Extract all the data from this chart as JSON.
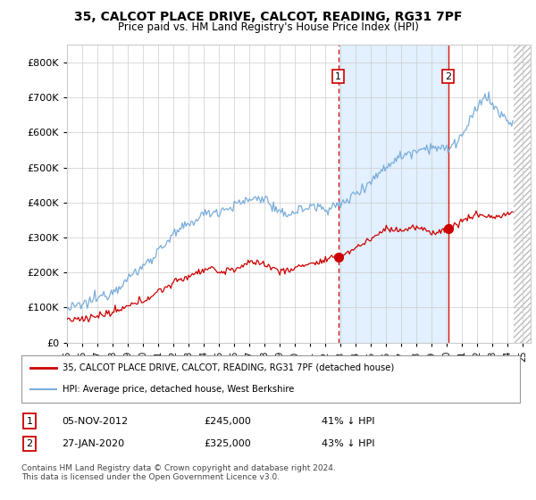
{
  "title": "35, CALCOT PLACE DRIVE, CALCOT, READING, RG31 7PF",
  "subtitle": "Price paid vs. HM Land Registry's House Price Index (HPI)",
  "xlim_start": 1995.0,
  "xlim_end": 2025.5,
  "ylim_min": 0,
  "ylim_max": 850000,
  "sale1_date": 2012.84,
  "sale1_price": 245000,
  "sale2_date": 2020.07,
  "sale2_price": 325000,
  "legend_line1": "35, CALCOT PLACE DRIVE, CALCOT, READING, RG31 7PF (detached house)",
  "legend_line2": "HPI: Average price, detached house, West Berkshire",
  "note1_label": "1",
  "note1_date": "05-NOV-2012",
  "note1_price": "£245,000",
  "note1_pct": "41% ↓ HPI",
  "note2_label": "2",
  "note2_date": "27-JAN-2020",
  "note2_price": "£325,000",
  "note2_pct": "43% ↓ HPI",
  "footer": "Contains HM Land Registry data © Crown copyright and database right 2024.\nThis data is licensed under the Open Government Licence v3.0.",
  "red_color": "#cc0000",
  "blue_color": "#7aaddb",
  "shade_color": "#ddeeff",
  "grid_color": "#cccccc",
  "bg_color": "#ffffff",
  "hatch_end": 2025.5,
  "data_end": 2024.4
}
